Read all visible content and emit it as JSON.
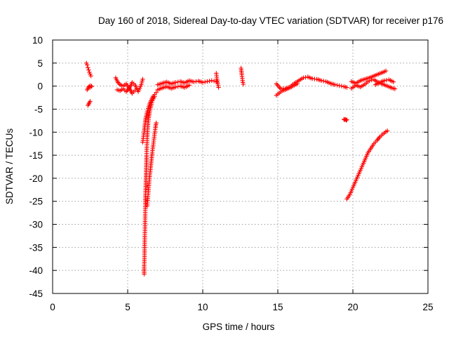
{
  "chart_data": {
    "type": "scatter",
    "title": "Day 160 of 2018, Sidereal Day-to-day VTEC variation (SDTVAR) for receiver p176",
    "xlabel": "GPS time / hours",
    "ylabel": "SDTVAR / TECUs",
    "xlim": [
      0,
      25
    ],
    "ylim": [
      -45,
      10
    ],
    "x_ticks": [
      0,
      5,
      10,
      15,
      20,
      25
    ],
    "y_ticks": [
      10,
      5,
      0,
      -5,
      -10,
      -15,
      -20,
      -25,
      -30,
      -35,
      -40,
      -45
    ],
    "grid": true,
    "marker": "+",
    "marker_color": "#ff0000",
    "series": [
      {
        "name": "SDTVAR",
        "segments": [
          {
            "label": "arc near 2.4h (upper)",
            "x": [
              2.25,
              2.3,
              2.35,
              2.4,
              2.45,
              2.5,
              2.55
            ],
            "y": [
              5.0,
              4.6,
              4.0,
              3.5,
              3.0,
              2.6,
              2.2
            ]
          },
          {
            "label": "arc near 2.4h (middle)",
            "x": [
              2.3,
              2.35,
              2.4,
              2.45,
              2.5,
              2.55,
              2.6
            ],
            "y": [
              -0.8,
              -0.5,
              -0.2,
              0.0,
              -0.3,
              0.1,
              -0.1
            ]
          },
          {
            "label": "arc near 2.4h (lower)",
            "x": [
              2.35,
              2.4,
              2.45,
              2.5
            ],
            "y": [
              -4.2,
              -3.9,
              -3.6,
              -3.3
            ]
          },
          {
            "label": "band 4.2-6.0h",
            "x": [
              4.2,
              4.35,
              4.5,
              4.7,
              4.9,
              5.1,
              5.3,
              5.5,
              5.7,
              5.9,
              6.0
            ],
            "y": [
              1.8,
              0.8,
              0.3,
              0.0,
              0.5,
              -0.5,
              0.8,
              0.2,
              -1.2,
              0.3,
              1.5
            ]
          },
          {
            "label": "band 4.2-6.0h (lower)",
            "x": [
              4.3,
              4.5,
              4.7,
              4.9,
              5.1,
              5.3,
              5.5
            ],
            "y": [
              -0.8,
              -1.0,
              -0.6,
              -1.2,
              -0.4,
              -1.6,
              -0.9
            ]
          },
          {
            "label": "steep drop near 6.1h",
            "x": [
              6.1,
              6.1,
              6.12,
              6.13,
              6.14,
              6.15,
              6.16,
              6.17,
              6.18,
              6.2,
              6.22,
              6.24,
              6.26,
              6.28,
              6.3,
              6.33,
              6.36,
              6.4,
              6.45,
              6.5,
              6.55,
              6.6,
              6.7,
              6.8
            ],
            "y": [
              -40.8,
              -39.0,
              -37.0,
              -35.0,
              -33.0,
              -31.0,
              -29.0,
              -27.0,
              -25.0,
              -22.5,
              -20.0,
              -17.5,
              -15.0,
              -13.0,
              -11.0,
              -9.5,
              -8.0,
              -6.8,
              -5.8,
              -5.0,
              -4.3,
              -3.6,
              -2.8,
              -2.2
            ]
          },
          {
            "label": "steep drop near 6.3h (second arc)",
            "x": [
              6.0,
              6.05,
              6.1,
              6.15,
              6.2,
              6.3,
              6.4,
              6.5,
              6.6,
              6.7,
              6.8,
              6.9
            ],
            "y": [
              -12.2,
              -11.0,
              -9.8,
              -8.4,
              -7.0,
              -5.6,
              -4.5,
              -3.5,
              -2.8,
              -2.2,
              -1.8,
              -1.4
            ]
          },
          {
            "label": "recovering arc 6.3-6.9h",
            "x": [
              6.3,
              6.35,
              6.4,
              6.45,
              6.5,
              6.55,
              6.6,
              6.65,
              6.7,
              6.75,
              6.8,
              6.85,
              6.9
            ],
            "y": [
              -26.0,
              -24.0,
              -22.0,
              -20.0,
              -18.5,
              -17.0,
              -15.5,
              -14.0,
              -12.8,
              -11.5,
              -10.2,
              -9.0,
              -8.0
            ]
          },
          {
            "label": "flat arc 7.0-11.0h",
            "x": [
              7.0,
              7.3,
              7.6,
              7.9,
              8.2,
              8.5,
              8.8,
              9.1,
              9.4,
              9.7,
              10.0,
              10.3,
              10.6,
              10.9
            ],
            "y": [
              0.3,
              0.6,
              0.9,
              0.5,
              0.8,
              1.0,
              0.7,
              1.2,
              0.9,
              1.1,
              0.8,
              1.0,
              1.2,
              1.0
            ]
          },
          {
            "label": "flat arc 7.0-11.0h (lower)",
            "x": [
              7.0,
              7.3,
              7.6,
              7.9,
              8.2,
              8.5,
              8.8,
              9.1
            ],
            "y": [
              -0.8,
              -0.4,
              -0.1,
              -0.5,
              -0.2,
              0.0,
              -0.3,
              0.2
            ]
          },
          {
            "label": "short arc near 11h",
            "x": [
              10.9,
              10.95,
              11.0,
              11.05
            ],
            "y": [
              2.8,
              1.5,
              0.5,
              -0.3
            ]
          },
          {
            "label": "short arc near 12.6h",
            "x": [
              12.55,
              12.6,
              12.65,
              12.7
            ],
            "y": [
              3.9,
              2.5,
              1.2,
              0.4
            ]
          },
          {
            "label": "arc 14.9-19.6h",
            "x": [
              14.9,
              15.2,
              15.5,
              15.8,
              16.1,
              16.4,
              16.7,
              17.0,
              17.3,
              17.6,
              17.9,
              18.2,
              18.5,
              18.8,
              19.1,
              19.4,
              19.6
            ],
            "y": [
              0.5,
              -0.6,
              -0.5,
              -0.2,
              0.6,
              1.2,
              1.8,
              2.0,
              1.6,
              1.5,
              1.2,
              1.0,
              0.6,
              0.3,
              0.1,
              -0.1,
              -0.3
            ]
          },
          {
            "label": "arc 14.9-16.5h (lower)",
            "x": [
              14.9,
              15.1,
              15.3,
              15.5,
              15.7,
              15.9,
              16.1,
              16.3
            ],
            "y": [
              -2.0,
              -1.5,
              -1.0,
              -0.8,
              -0.5,
              -0.2,
              0.2,
              0.5
            ]
          },
          {
            "label": "isolated cluster near 19.5h",
            "x": [
              19.4,
              19.45,
              19.5,
              19.55,
              19.6
            ],
            "y": [
              -7.2,
              -7.3,
              -7.2,
              -7.4,
              -7.3
            ]
          },
          {
            "label": "rising arc 19.6-22.3h",
            "x": [
              19.6,
              19.8,
              20.0,
              20.2,
              20.4,
              20.6,
              20.8,
              21.0,
              21.2,
              21.4,
              21.6,
              21.8,
              22.0,
              22.2,
              22.3
            ],
            "y": [
              -24.5,
              -23.5,
              -22.0,
              -20.5,
              -19.0,
              -17.5,
              -16.0,
              -14.5,
              -13.5,
              -12.5,
              -11.8,
              -11.0,
              -10.4,
              -9.9,
              -9.7
            ]
          },
          {
            "label": "arc 19.9-22.3h (upper)",
            "x": [
              19.9,
              20.2,
              20.5,
              20.8,
              21.1,
              21.4,
              21.7,
              22.0,
              22.2
            ],
            "y": [
              1.0,
              0.6,
              1.2,
              1.5,
              1.8,
              2.2,
              2.6,
              3.0,
              3.3
            ]
          },
          {
            "label": "arc 19.9-22.8h (lower)",
            "x": [
              19.9,
              20.2,
              20.5,
              20.8,
              21.1,
              21.4,
              21.7,
              22.0,
              22.3,
              22.6,
              22.8
            ],
            "y": [
              -0.5,
              0.2,
              -0.2,
              0.4,
              1.2,
              1.4,
              0.8,
              0.4,
              0.0,
              -0.4,
              -0.6
            ]
          },
          {
            "label": "arc 21.5-22.8h (trailing)",
            "x": [
              21.5,
              21.8,
              22.1,
              22.4,
              22.7
            ],
            "y": [
              0.3,
              0.8,
              1.2,
              1.4,
              0.9
            ]
          }
        ]
      }
    ]
  }
}
